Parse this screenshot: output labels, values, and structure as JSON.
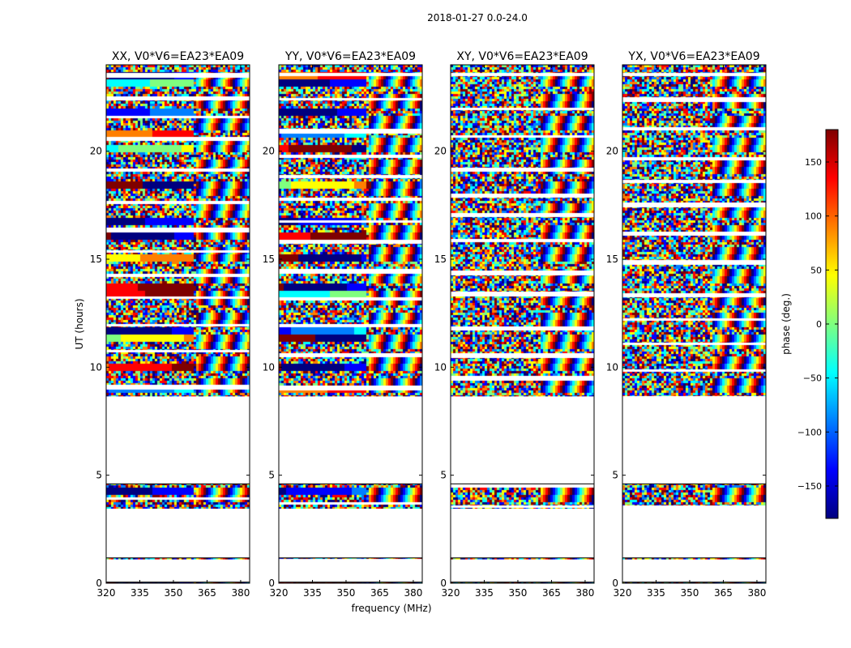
{
  "chart_data": {
    "type": "heatmap",
    "suptitle": "2018-01-27 0.0-24.0",
    "xlabel": "frequency (MHz)",
    "ylabel": "UT (hours)",
    "xlim": [
      320,
      384
    ],
    "ylim": [
      0,
      24
    ],
    "xticks": [
      320,
      335,
      350,
      365,
      380
    ],
    "yticks": [
      0,
      5,
      10,
      15,
      20
    ],
    "colorbar": {
      "label": "phase (deg.)",
      "range": [
        -180,
        180
      ],
      "ticks": [
        150,
        100,
        50,
        0,
        -50,
        -100,
        -150
      ],
      "colormap": [
        "#00007f",
        "#0000ff",
        "#007fff",
        "#00ffff",
        "#7fff7f",
        "#ffff00",
        "#ff7f00",
        "#ff0000",
        "#7f0000"
      ]
    },
    "panels": [
      {
        "title": "XX, V0*V6=EA23*EA09"
      },
      {
        "title": "YY, V0*V6=EA23*EA09"
      },
      {
        "title": "XY, V0*V6=EA23*EA09"
      },
      {
        "title": "YX, V0*V6=EA23*EA09"
      }
    ],
    "observed_ut_ranges": [
      [
        0.0,
        0.05
      ],
      [
        1.1,
        1.17
      ],
      [
        3.45,
        4.6
      ],
      [
        8.65,
        24.0
      ]
    ]
  }
}
